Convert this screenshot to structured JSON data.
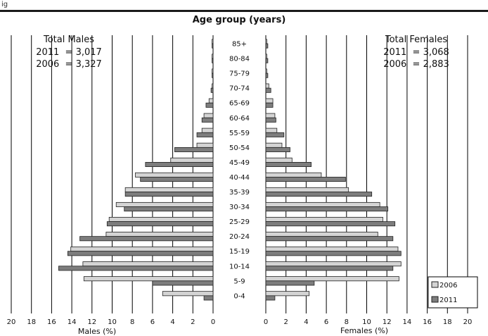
{
  "header_text": "ig",
  "chart_data": {
    "type": "bar",
    "title": "Age group (years)",
    "xlabel_left": "Males (%)",
    "xlabel_right": "Females (%)",
    "x_ticks": [
      "20",
      "18",
      "16",
      "14",
      "12",
      "10",
      "8",
      "6",
      "4",
      "2",
      "0"
    ],
    "x_ticks_right": [
      "0",
      "2",
      "4",
      "6",
      "8",
      "10",
      "12",
      "14",
      "16",
      "18",
      "20"
    ],
    "xlim": [
      0,
      20
    ],
    "grid": true,
    "legend_position": "bottom-right",
    "legend_labels": [
      "2006",
      "2011"
    ],
    "categories": [
      "85+",
      "80-84",
      "75-79",
      "70-74",
      "65-69",
      "60-64",
      "55-59",
      "50-54",
      "45-49",
      "40-44",
      "35-39",
      "30-34",
      "25-29",
      "20-24",
      "15-19",
      "10-14",
      "5-9",
      "0-4"
    ],
    "males": {
      "2006": [
        0.1,
        0.1,
        0.1,
        0.1,
        0.4,
        0.9,
        1.1,
        1.6,
        4.2,
        7.7,
        8.7,
        9.6,
        10.3,
        10.6,
        14.1,
        12.9,
        12.8,
        5.0
      ],
      "2011": [
        0.1,
        0.1,
        0.1,
        0.2,
        0.7,
        1.1,
        1.6,
        3.8,
        6.7,
        7.2,
        8.7,
        8.8,
        10.5,
        13.2,
        14.4,
        15.3,
        6.0,
        0.9
      ]
    },
    "females": {
      "2006": [
        0.1,
        0.1,
        0.1,
        0.3,
        0.7,
        0.9,
        1.1,
        1.6,
        2.6,
        5.5,
        8.2,
        11.3,
        11.6,
        11.1,
        13.1,
        13.4,
        13.2,
        4.3
      ],
      "2011": [
        0.2,
        0.2,
        0.2,
        0.5,
        0.7,
        1.0,
        1.8,
        2.4,
        4.5,
        7.9,
        10.5,
        12.1,
        12.8,
        12.6,
        13.4,
        12.6,
        4.8,
        0.9
      ]
    },
    "totals_males": {
      "title": "Total Males",
      "line_2011": "2011  = 3,017",
      "line_2006": "2006  = 3,327"
    },
    "totals_females": {
      "title": "Total Females",
      "line_2011": "2011  = 3,068",
      "line_2006": "2006  = 2,883"
    },
    "colors": {
      "2006": "#d4d4d4",
      "2011": "#7d7d7d",
      "bar_outline": "#222222",
      "grid": "#000000"
    }
  }
}
